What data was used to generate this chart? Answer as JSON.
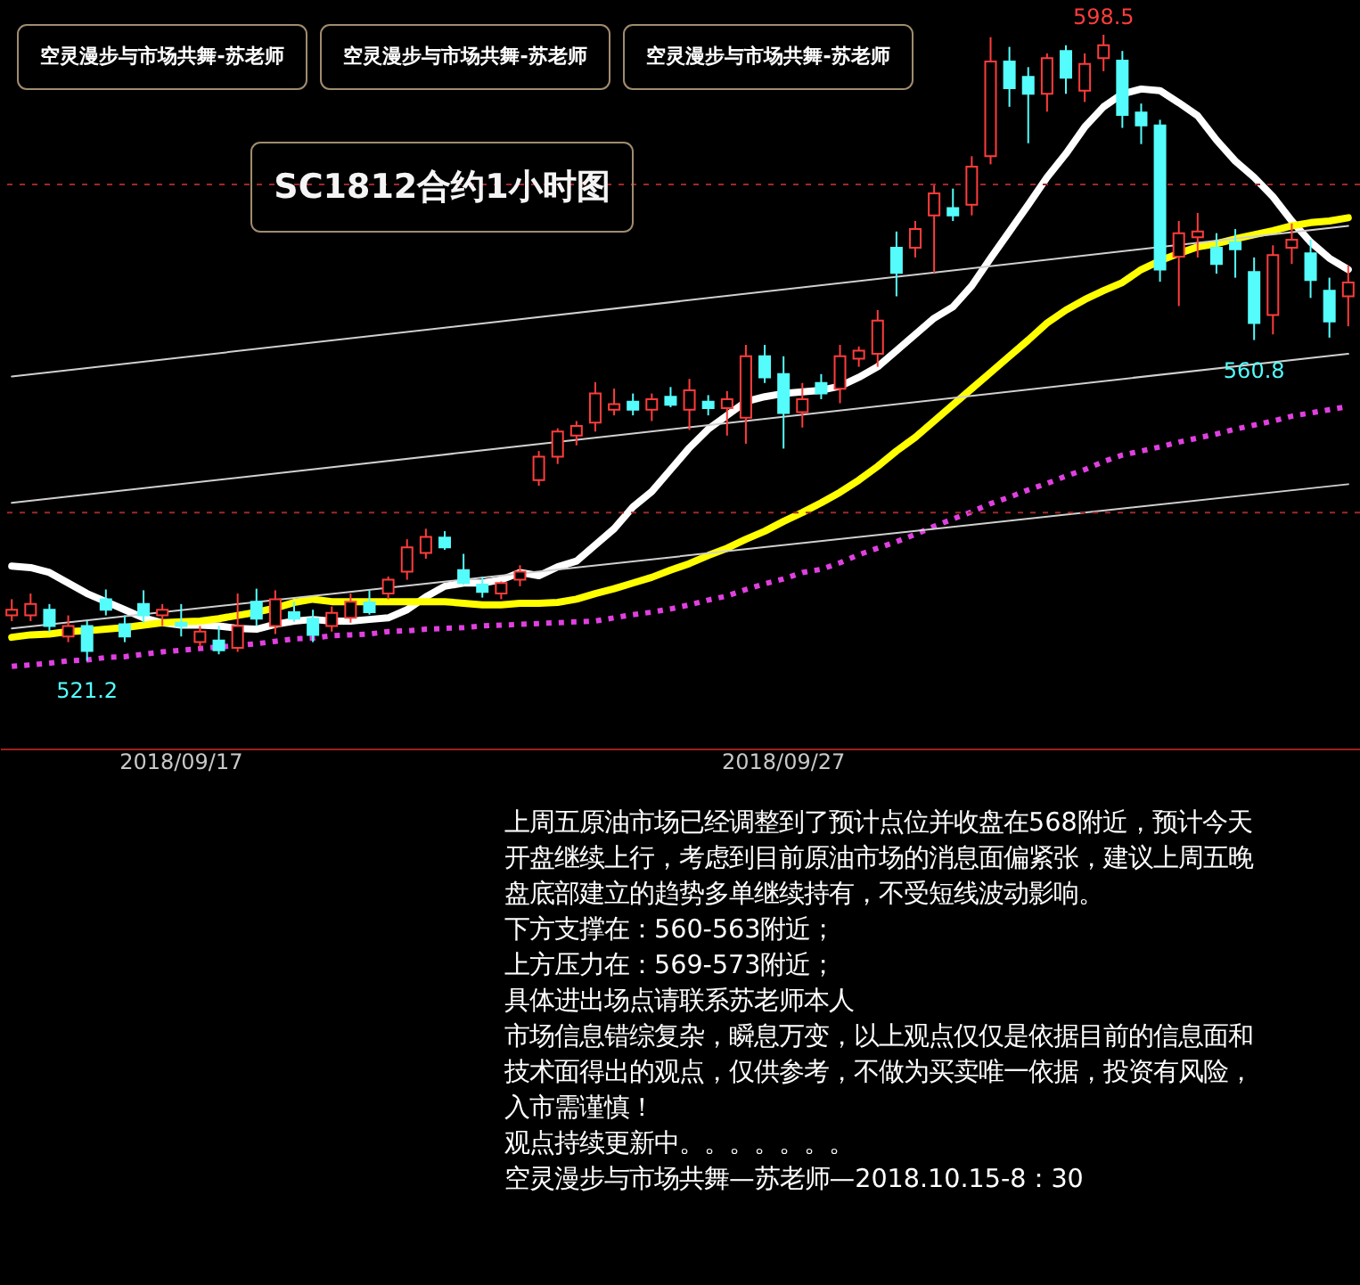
{
  "chart_data": {
    "type": "candlestick",
    "title": "SC1812合约1小时图",
    "categories": [
      null,
      null,
      null,
      null,
      null,
      null,
      null,
      null,
      null,
      "2018/09/17",
      null,
      null,
      null,
      null,
      null,
      null,
      null,
      null,
      null,
      null,
      null,
      null,
      null,
      null,
      null,
      null,
      null,
      null,
      null,
      null,
      null,
      null,
      null,
      null,
      null,
      null,
      null,
      null,
      null,
      null,
      null,
      "2018/09/27",
      null,
      null,
      null,
      null,
      null,
      null,
      null,
      null,
      null,
      null,
      null,
      null,
      null,
      null,
      null,
      null,
      null,
      null,
      null,
      null,
      null,
      null,
      null,
      null,
      null,
      null,
      null,
      null,
      null,
      null
    ],
    "ohlc": [
      [
        526.8,
        528.8,
        526.1,
        527.5
      ],
      [
        526.8,
        529.5,
        526.1,
        528.2
      ],
      [
        527.5,
        528.2,
        524.8,
        525.5
      ],
      [
        524.2,
        526.8,
        523.5,
        525.5
      ],
      [
        525.5,
        526.1,
        521.2,
        522.4
      ],
      [
        528.8,
        530.0,
        526.8,
        527.5
      ],
      [
        525.7,
        526.8,
        523.5,
        524.2
      ],
      [
        528.2,
        529.9,
        525.9,
        526.8
      ],
      [
        526.8,
        528.2,
        525.5,
        527.5
      ],
      [
        525.9,
        528.2,
        524.2,
        525.5
      ],
      [
        523.5,
        525.5,
        522.8,
        524.8
      ],
      [
        523.7,
        525.5,
        522.0,
        522.5
      ],
      [
        522.8,
        529.5,
        522.3,
        525.5
      ],
      [
        528.5,
        530.1,
        525.5,
        526.4
      ],
      [
        525.5,
        529.9,
        524.5,
        528.8
      ],
      [
        527.2,
        528.5,
        526.0,
        526.4
      ],
      [
        526.4,
        527.5,
        523.5,
        524.4
      ],
      [
        525.5,
        527.9,
        524.8,
        527.1
      ],
      [
        526.5,
        529.5,
        525.9,
        528.5
      ],
      [
        528.4,
        529.9,
        526.9,
        527.2
      ],
      [
        529.5,
        531.6,
        528.8,
        531.2
      ],
      [
        532.2,
        536.2,
        531.2,
        535.2
      ],
      [
        534.5,
        537.5,
        533.8,
        536.5
      ],
      [
        536.4,
        537.2,
        534.9,
        535.2
      ],
      [
        532.4,
        534.4,
        530.6,
        530.8
      ],
      [
        530.6,
        531.6,
        529.0,
        529.7
      ],
      [
        529.5,
        531.0,
        528.8,
        530.8
      ],
      [
        531.2,
        533.0,
        530.4,
        532.2
      ],
      [
        543.5,
        547.1,
        542.8,
        546.4
      ],
      [
        546.4,
        549.9,
        545.5,
        549.5
      ],
      [
        549.0,
        550.8,
        547.8,
        550.2
      ],
      [
        550.6,
        555.6,
        549.5,
        554.2
      ],
      [
        552.2,
        554.8,
        551.5,
        552.9
      ],
      [
        553.2,
        554.2,
        551.5,
        552.2
      ],
      [
        552.2,
        554.2,
        550.8,
        553.5
      ],
      [
        553.8,
        555.0,
        552.5,
        552.8
      ],
      [
        552.2,
        556.0,
        549.7,
        554.6
      ],
      [
        553.2,
        554.0,
        551.5,
        552.4
      ],
      [
        552.4,
        554.5,
        549.0,
        553.5
      ],
      [
        551.2,
        560.2,
        548.0,
        558.8
      ],
      [
        558.8,
        560.2,
        555.5,
        556.2
      ],
      [
        556.6,
        558.8,
        547.4,
        551.8
      ],
      [
        551.9,
        555.5,
        550.0,
        553.5
      ],
      [
        555.5,
        556.6,
        553.5,
        554.2
      ],
      [
        554.8,
        560.2,
        553.0,
        558.8
      ],
      [
        558.5,
        560.0,
        557.5,
        559.5
      ],
      [
        559.1,
        564.5,
        557.5,
        563.2
      ],
      [
        572.2,
        574.2,
        566.2,
        569.1
      ],
      [
        572.2,
        575.5,
        571.0,
        574.5
      ],
      [
        576.2,
        579.9,
        569.1,
        578.9
      ],
      [
        577.1,
        579.5,
        575.5,
        576.2
      ],
      [
        577.5,
        583.5,
        576.2,
        582.2
      ],
      [
        583.5,
        598.2,
        582.5,
        595.2
      ],
      [
        595.2,
        597.0,
        589.6,
        591.9
      ],
      [
        593.3,
        594.5,
        585.1,
        591.2
      ],
      [
        591.2,
        596.2,
        589.0,
        595.6
      ],
      [
        596.5,
        597.2,
        591.2,
        593.2
      ],
      [
        591.6,
        596.2,
        590.2,
        594.9
      ],
      [
        595.6,
        598.5,
        594.0,
        597.2
      ],
      [
        595.3,
        596.5,
        587.0,
        588.6
      ],
      [
        588.9,
        590.0,
        585.0,
        587.3
      ],
      [
        587.3,
        588.0,
        568.0,
        569.5
      ],
      [
        571.1,
        575.5,
        565.0,
        574.0
      ],
      [
        573.5,
        576.5,
        571.0,
        574.2
      ],
      [
        572.2,
        574.0,
        569.0,
        570.2
      ],
      [
        572.9,
        574.5,
        568.5,
        572.0
      ],
      [
        569.2,
        571.0,
        560.8,
        562.9
      ],
      [
        563.9,
        572.5,
        561.5,
        571.3
      ],
      [
        572.2,
        575.2,
        570.2,
        573.2
      ],
      [
        571.5,
        573.2,
        566.0,
        568.2
      ],
      [
        566.9,
        568.5,
        561.1,
        563.1
      ],
      [
        566.2,
        570.0,
        562.5,
        567.9
      ]
    ],
    "colors": [
      "#ff3c3c",
      "#ff3c3c",
      "#54fcfc",
      "#ff3c3c",
      "#54fcfc",
      "#54fcfc",
      "#54fcfc",
      "#54fcfc",
      "#ff3c3c",
      "#54fcfc",
      "#ff3c3c",
      "#54fcfc",
      "#ff3c3c",
      "#54fcfc",
      "#ff3c3c",
      "#54fcfc",
      "#54fcfc",
      "#ff3c3c",
      "#ff3c3c",
      "#54fcfc",
      "#ff3c3c",
      "#ff3c3c",
      "#ff3c3c",
      "#54fcfc",
      "#54fcfc",
      "#54fcfc",
      "#ff3c3c",
      "#ff3c3c",
      "#ff3c3c",
      "#ff3c3c",
      "#ff3c3c",
      "#ff3c3c",
      "#ff3c3c",
      "#54fcfc",
      "#ff3c3c",
      "#54fcfc",
      "#ff3c3c",
      "#54fcfc",
      "#ff3c3c",
      "#ff3c3c",
      "#54fcfc",
      "#54fcfc",
      "#ff3c3c",
      "#54fcfc",
      "#ff3c3c",
      "#ff3c3c",
      "#ff3c3c",
      "#54fcfc",
      "#ff3c3c",
      "#ff3c3c",
      "#54fcfc",
      "#ff3c3c",
      "#ff3c3c",
      "#54fcfc",
      "#54fcfc",
      "#ff3c3c",
      "#54fcfc",
      "#ff3c3c",
      "#ff3c3c",
      "#54fcfc",
      "#54fcfc",
      "#54fcfc",
      "#ff3c3c",
      "#ff3c3c",
      "#54fcfc",
      "#54fcfc",
      "#54fcfc",
      "#ff3c3c",
      "#ff3c3c",
      "#54fcfc",
      "#54fcfc",
      "#ff3c3c"
    ],
    "series": [
      {
        "type": "line",
        "color": "#ffffff",
        "line_style": "solid",
        "values": [
          532.9,
          532.7,
          532.1,
          530.8,
          529.5,
          528.5,
          527.5,
          526.5,
          525.9,
          525.6,
          525.6,
          525.5,
          525.2,
          525.1,
          525.7,
          526.1,
          526.3,
          526.1,
          526.1,
          526.3,
          526.5,
          527.5,
          529.1,
          530.4,
          530.8,
          530.8,
          531.2,
          532.1,
          531.7,
          532.8,
          533.5,
          535.5,
          537.5,
          540.2,
          542.1,
          544.8,
          547.5,
          549.8,
          551.5,
          553.2,
          553.8,
          554.2,
          554.4,
          554.6,
          555.1,
          556.2,
          557.5,
          559.5,
          561.5,
          563.5,
          564.9,
          567.5,
          570.9,
          574.2,
          577.5,
          580.9,
          583.8,
          587.1,
          589.6,
          591.2,
          591.8,
          591.6,
          590.1,
          588.5,
          585.5,
          582.9,
          580.9,
          578.5,
          575.5,
          572.9,
          570.9,
          569.5
        ]
      },
      {
        "type": "line",
        "color": "#ffff00",
        "line_style": "solid",
        "values": [
          524.1,
          524.4,
          524.5,
          524.8,
          524.9,
          525.1,
          525.3,
          525.6,
          525.9,
          526.0,
          526.1,
          526.4,
          526.8,
          527.2,
          527.7,
          528.4,
          528.8,
          528.5,
          528.5,
          528.5,
          528.5,
          528.5,
          528.5,
          528.5,
          528.3,
          528.1,
          528.1,
          528.3,
          528.3,
          528.4,
          528.8,
          529.5,
          530.1,
          530.8,
          531.5,
          532.4,
          533.2,
          534.2,
          535.1,
          536.2,
          537.2,
          538.4,
          539.5,
          540.7,
          542.0,
          543.5,
          545.2,
          547.1,
          548.8,
          550.8,
          552.8,
          554.8,
          556.8,
          558.8,
          560.8,
          562.9,
          564.5,
          565.8,
          566.9,
          567.9,
          569.5,
          570.6,
          571.5,
          572.3,
          572.7,
          573.3,
          573.8,
          574.3,
          574.9,
          575.3,
          575.5,
          575.9
        ]
      },
      {
        "type": "line",
        "color": "#e040e0",
        "line_style": "dotted",
        "values": [
          520.5,
          520.7,
          520.9,
          521.2,
          521.3,
          521.6,
          521.7,
          522.0,
          522.3,
          522.5,
          522.7,
          522.9,
          null,
          523.3,
          523.6,
          523.9,
          524.0,
          524.3,
          524.4,
          524.5,
          524.8,
          524.9,
          525.1,
          525.2,
          525.3,
          525.5,
          525.6,
          525.7,
          525.8,
          525.9,
          526.0,
          526.1,
          526.5,
          526.9,
          527.2,
          527.6,
          528.1,
          528.7,
          529.2,
          530.0,
          530.7,
          531.3,
          532.1,
          532.5,
          533.3,
          534.3,
          535.1,
          535.9,
          536.8,
          537.8,
          538.7,
          539.6,
          540.6,
          541.4,
          542.3,
          543.1,
          544.0,
          544.8,
          545.8,
          546.6,
          547.1,
          547.6,
          548.2,
          548.7,
          549.2,
          549.8,
          550.3,
          550.8,
          551.4,
          551.8,
          552.2,
          552.6
        ]
      },
      {
        "type": "line",
        "color": "#d0d0d0",
        "line_style": "solid",
        "values": [
          556.3,
          null,
          null,
          null,
          null,
          null,
          null,
          null,
          null,
          null,
          null,
          null,
          null,
          null,
          null,
          null,
          null,
          null,
          null,
          null,
          null,
          null,
          null,
          null,
          null,
          null,
          null,
          null,
          null,
          null,
          null,
          null,
          null,
          null,
          null,
          null,
          null,
          null,
          null,
          null,
          null,
          null,
          null,
          null,
          null,
          null,
          null,
          null,
          null,
          null,
          null,
          null,
          null,
          null,
          null,
          null,
          null,
          null,
          null,
          null,
          null,
          null,
          null,
          null,
          null,
          null,
          null,
          null,
          null,
          null,
          null,
          574.9
        ]
      },
      {
        "type": "line",
        "color": "#d0d0d0",
        "line_style": "solid",
        "values": [
          540.7,
          null,
          null,
          null,
          null,
          null,
          null,
          null,
          null,
          null,
          null,
          null,
          null,
          null,
          null,
          null,
          null,
          null,
          null,
          null,
          null,
          null,
          null,
          null,
          null,
          null,
          null,
          null,
          null,
          null,
          null,
          null,
          null,
          null,
          null,
          null,
          null,
          null,
          null,
          null,
          null,
          null,
          null,
          null,
          null,
          null,
          null,
          null,
          null,
          null,
          null,
          null,
          null,
          null,
          null,
          null,
          null,
          null,
          null,
          null,
          null,
          null,
          null,
          null,
          null,
          null,
          null,
          null,
          null,
          null,
          null,
          559.1
        ]
      },
      {
        "type": "line",
        "color": "#d0d0d0",
        "line_style": "solid",
        "values": [
          525.2,
          null,
          null,
          null,
          null,
          null,
          null,
          null,
          null,
          null,
          null,
          null,
          null,
          null,
          null,
          null,
          null,
          null,
          null,
          null,
          null,
          null,
          null,
          null,
          null,
          null,
          null,
          null,
          null,
          null,
          null,
          null,
          null,
          null,
          null,
          null,
          null,
          null,
          null,
          null,
          null,
          null,
          null,
          null,
          null,
          null,
          null,
          null,
          null,
          null,
          null,
          null,
          null,
          null,
          null,
          null,
          null,
          null,
          null,
          null,
          null,
          null,
          null,
          null,
          null,
          null,
          null,
          null,
          null,
          null,
          null,
          543.0
        ]
      }
    ],
    "ref_lines": [
      {
        "axis": "y",
        "value": 580.0,
        "color": "#a02828",
        "line_style": "dotted"
      },
      {
        "axis": "y",
        "value": 539.5,
        "color": "#a02828",
        "line_style": "dotted"
      }
    ],
    "annotations": [
      "空灵漫步与市场共舞-苏老师",
      "空灵漫步与市场共舞-苏老师",
      "空灵漫步与市场共舞-苏老师",
      "上周五原油市场已经调整到了预计点位并收盘在568附近，预计今天",
      "开盘继续上行，考虑到目前原油市场的消息面偏紧张，建议上周五晚",
      "盘底部建立的趋势多单继续持有，不受短线波动影响。",
      "下方支撑在：560-563附近；",
      "上方压力在：569-573附近；",
      "具体进出场点请联系苏老师本人",
      "市场信息错综复杂，瞬息万变，以上观点仅仅是依据目前的信息面和",
      "技术面得出的观点，仅供参考，不做为买卖唯一依据，投资有风险，",
      "入市需谨慎！",
      "观点持续更新中。。。。。。。",
      "空灵漫步与市场共舞—苏老师—2018.10.15-8：30",
      {
        "text": "598.5",
        "y": 598.5
      },
      {
        "text": "560.8",
        "y": 560.8
      },
      {
        "text": "521.2",
        "y": 521.2
      }
    ],
    "tick_labels": "x",
    "grid": false
  }
}
